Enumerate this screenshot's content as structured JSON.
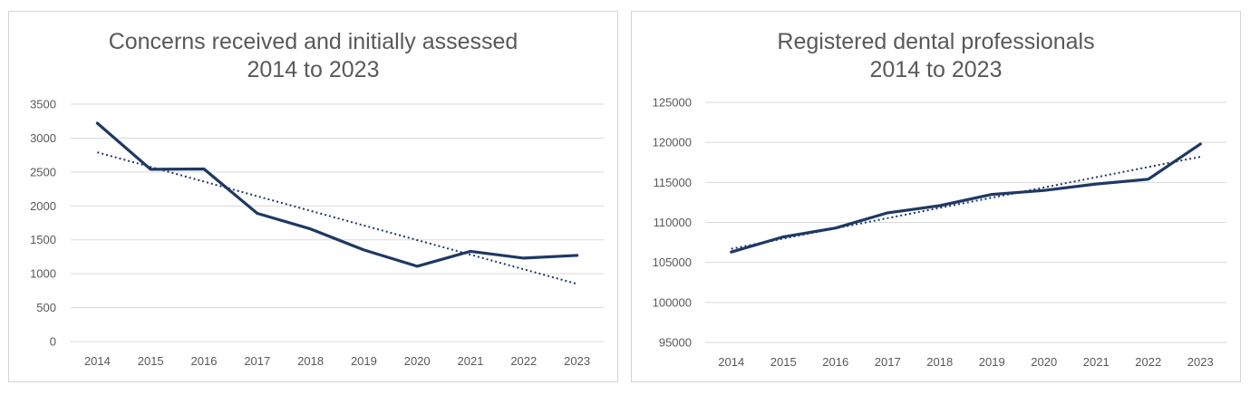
{
  "chart_data": [
    {
      "type": "line",
      "title": "Concerns received and initially assessed",
      "subtitle": "2014 to 2023",
      "categories": [
        "2014",
        "2015",
        "2016",
        "2017",
        "2018",
        "2019",
        "2020",
        "2021",
        "2022",
        "2023"
      ],
      "series": [
        {
          "values": [
            3220,
            2540,
            2545,
            1890,
            1660,
            1350,
            1110,
            1330,
            1230,
            1270
          ]
        }
      ],
      "trendline": {
        "type": "linear",
        "style": "dotted",
        "start": 2790,
        "end": 850
      },
      "ylim": [
        0,
        3500
      ],
      "yticks": [
        "0",
        "500",
        "1000",
        "1500",
        "2000",
        "2500",
        "3000",
        "3500"
      ],
      "grid": true,
      "color": "#1f3864"
    },
    {
      "type": "line",
      "title": "Registered dental professionals",
      "subtitle": "2014 to 2023",
      "categories": [
        "2014",
        "2015",
        "2016",
        "2017",
        "2018",
        "2019",
        "2020",
        "2021",
        "2022",
        "2023"
      ],
      "series": [
        {
          "values": [
            106300,
            108200,
            109300,
            111200,
            112100,
            113500,
            114000,
            114800,
            115400,
            119800
          ]
        }
      ],
      "trendline": {
        "type": "linear",
        "style": "dotted",
        "start": 106700,
        "end": 118200
      },
      "ylim": [
        95000,
        125000
      ],
      "yticks": [
        "95000",
        "100000",
        "105000",
        "110000",
        "115000",
        "120000",
        "125000"
      ],
      "grid": true,
      "color": "#1f3864"
    }
  ]
}
